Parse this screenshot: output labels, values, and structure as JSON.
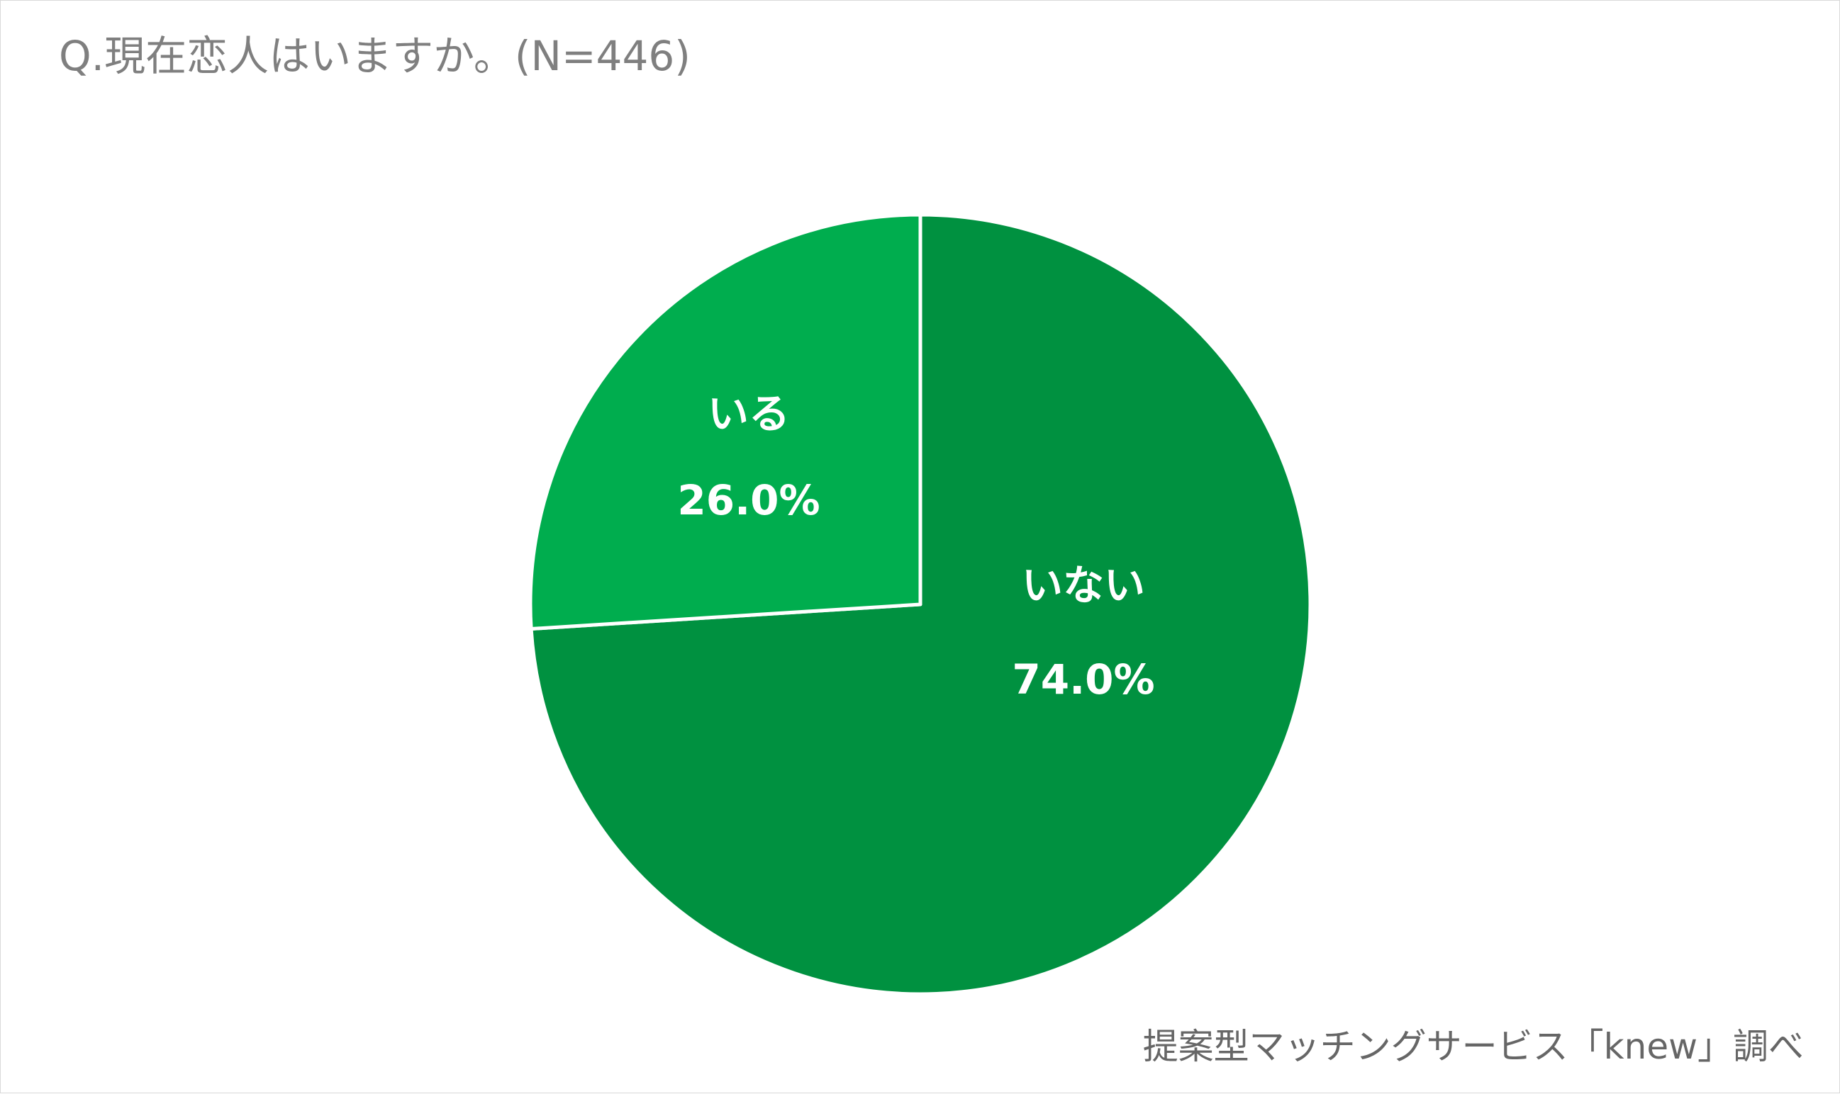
{
  "chart_data": {
    "type": "pie",
    "title": "Q.現在恋人はいますか。(N=446)",
    "source": "提案型マッチングサービス「knew」調べ",
    "slices": [
      {
        "label": "いない",
        "value": 74.0,
        "value_label": "74.0%",
        "color": "#009140"
      },
      {
        "label": "いる",
        "value": 26.0,
        "value_label": "26.0%",
        "color": "#00ad4e"
      }
    ],
    "start_angle_deg": 0,
    "direction": "clockwise",
    "slice_border_color": "#ffffff"
  }
}
